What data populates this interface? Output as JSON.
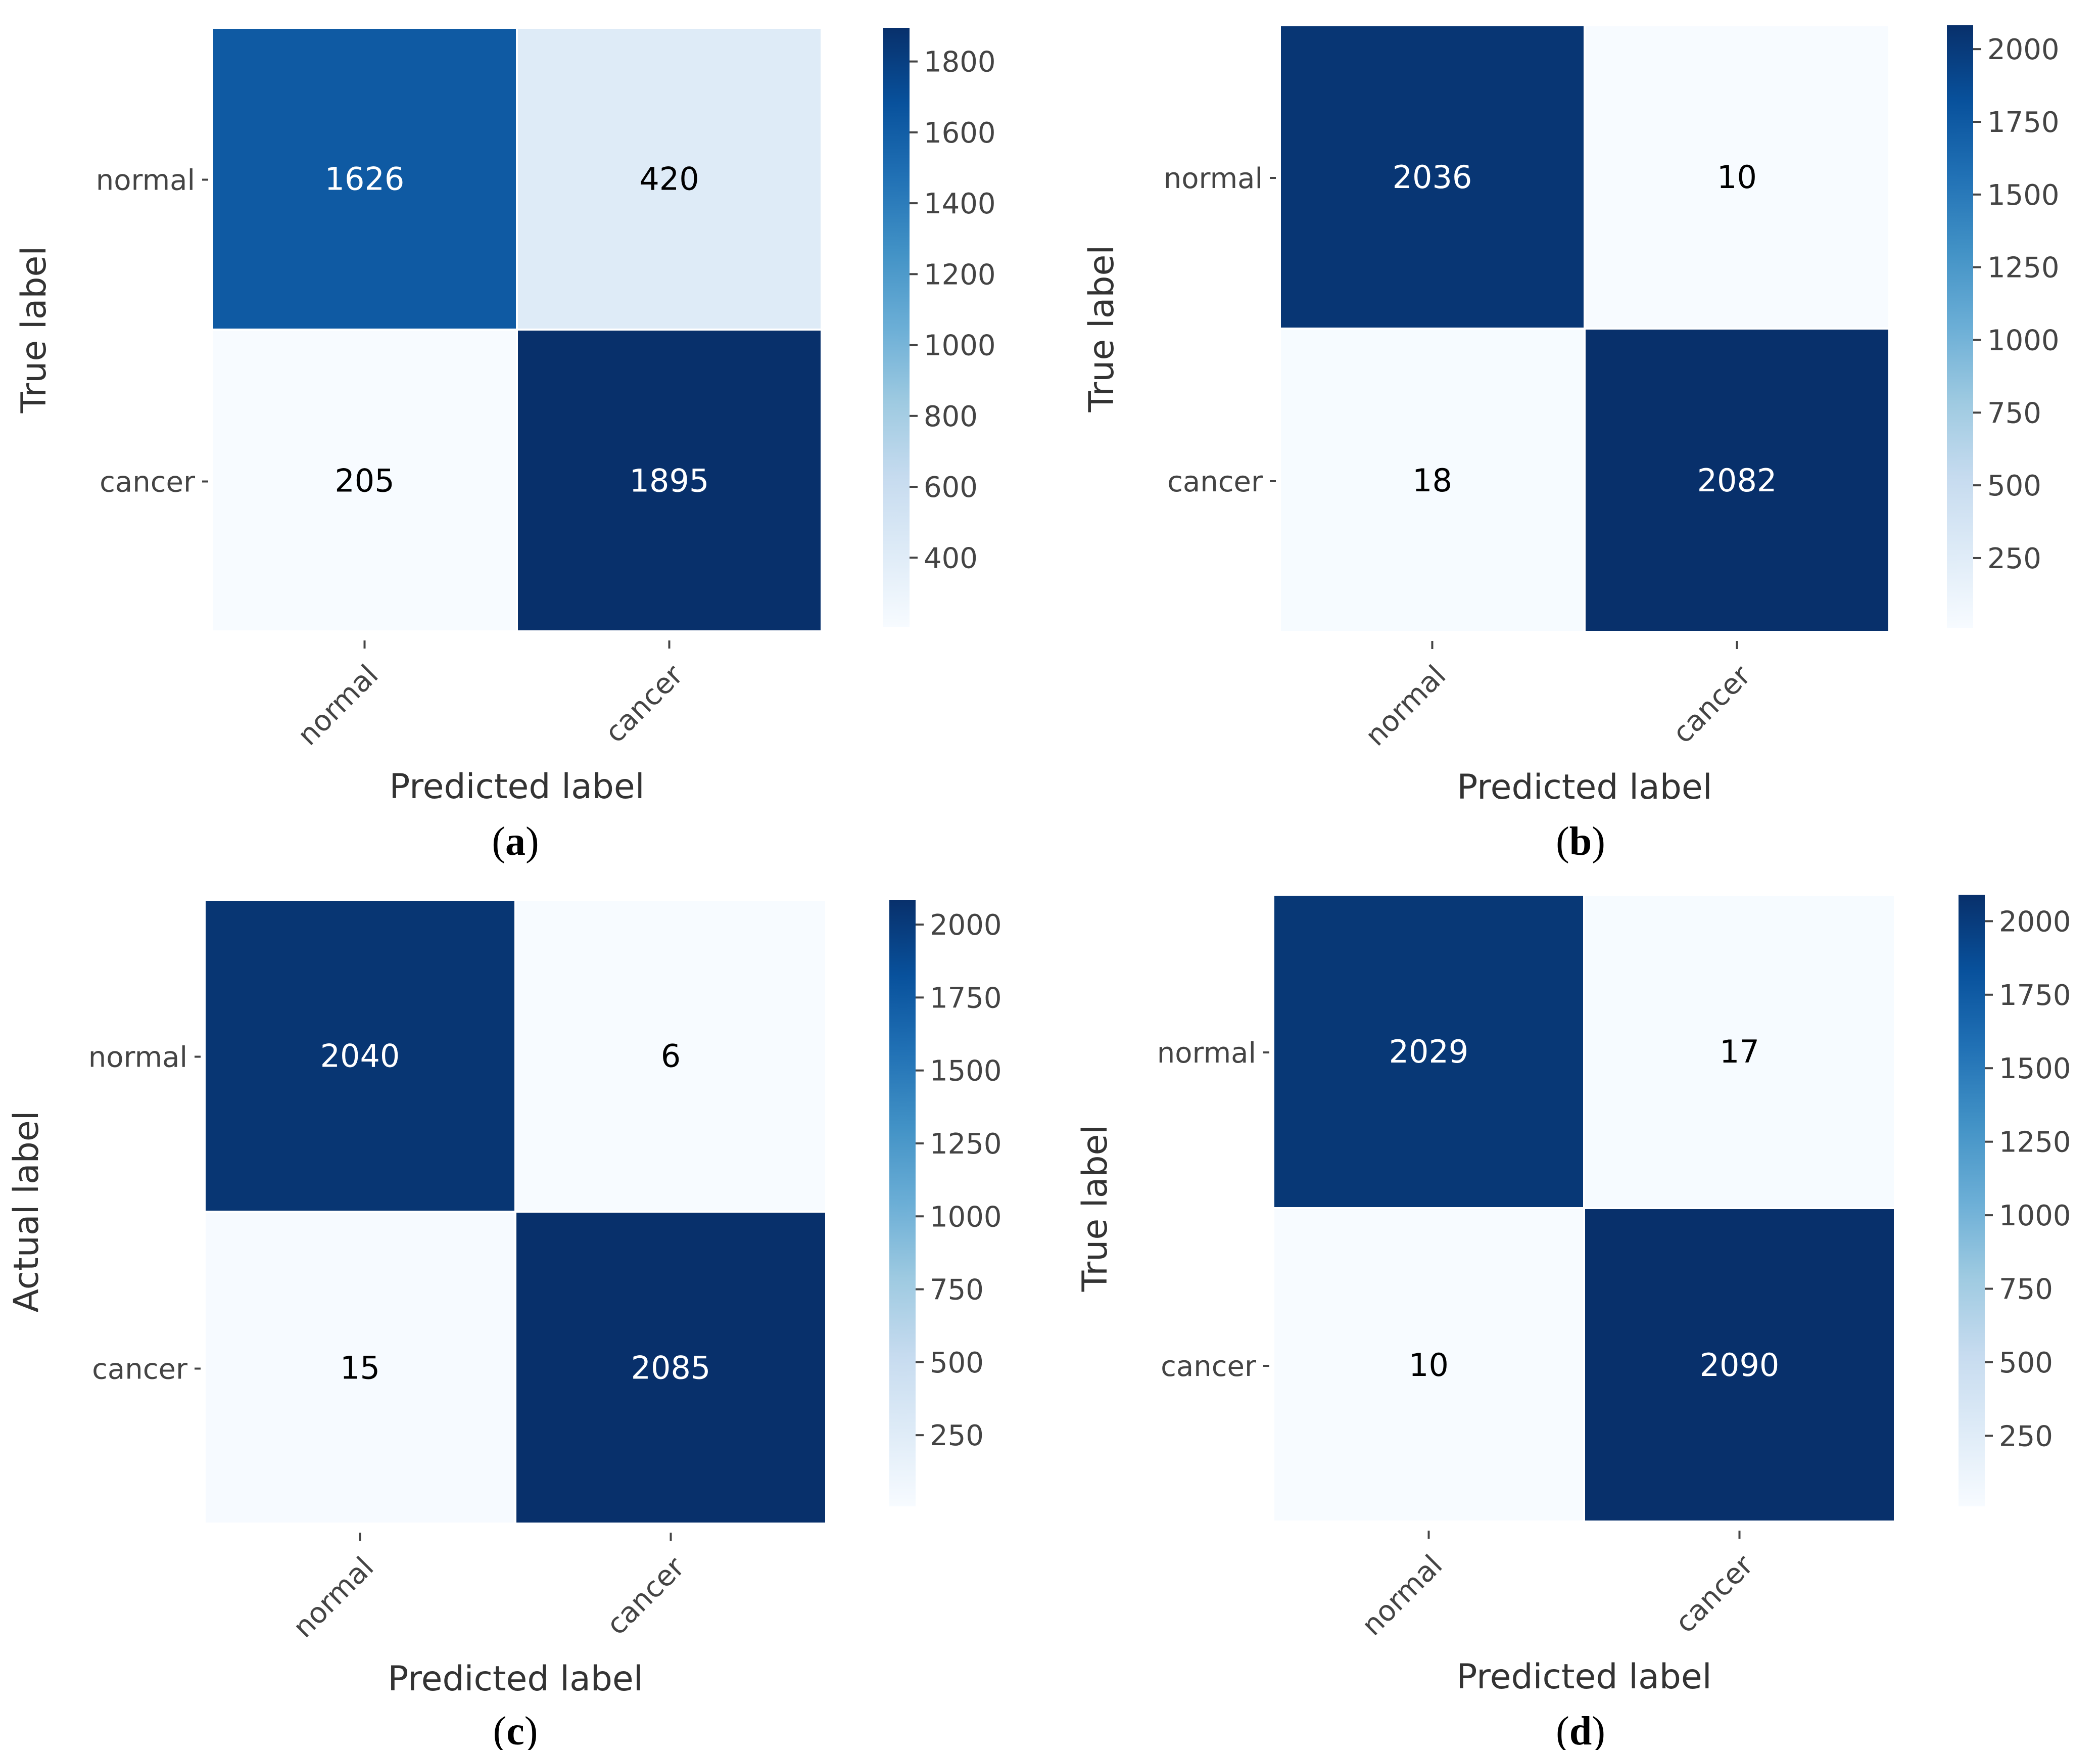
{
  "figure": {
    "panels": [
      {
        "caption_letter": "a"
      },
      {
        "caption_letter": "b"
      },
      {
        "caption_letter": "c"
      },
      {
        "caption_letter": "d"
      }
    ]
  },
  "colors": {
    "cmap": [
      "#f7fbff",
      "#deebf7",
      "#c6dbef",
      "#9ecae1",
      "#6baed6",
      "#4292c6",
      "#2171b5",
      "#08519c",
      "#08306b"
    ],
    "grid_line": "#ffffff",
    "text_dark": "#000000",
    "text_light": "#ffffff",
    "axis_text": "#444444"
  },
  "chart_data": [
    {
      "type": "heatmap",
      "title": "",
      "xlabel": "Predicted label",
      "ylabel": "True label",
      "x_categories": [
        "normal",
        "cancer"
      ],
      "y_categories": [
        "normal",
        "cancer"
      ],
      "values": [
        [
          1626,
          420
        ],
        [
          205,
          1895
        ]
      ],
      "colorbar_ticks": [
        1800,
        1600,
        1400,
        1200,
        1000,
        800,
        600,
        400
      ],
      "vmin": 205,
      "vmax": 1895,
      "legend": "colorbar-right"
    },
    {
      "type": "heatmap",
      "title": "",
      "xlabel": "Predicted label",
      "ylabel": "True label",
      "x_categories": [
        "normal",
        "cancer"
      ],
      "y_categories": [
        "normal",
        "cancer"
      ],
      "values": [
        [
          2036,
          10
        ],
        [
          18,
          2082
        ]
      ],
      "colorbar_ticks": [
        2000,
        1750,
        1500,
        1250,
        1000,
        750,
        500,
        250
      ],
      "vmin": 10,
      "vmax": 2082,
      "legend": "colorbar-right"
    },
    {
      "type": "heatmap",
      "title": "",
      "xlabel": "Predicted label",
      "ylabel": "Actual label",
      "x_categories": [
        "normal",
        "cancer"
      ],
      "y_categories": [
        "normal",
        "cancer"
      ],
      "values": [
        [
          2040,
          6
        ],
        [
          15,
          2085
        ]
      ],
      "colorbar_ticks": [
        2000,
        1750,
        1500,
        1250,
        1000,
        750,
        500,
        250
      ],
      "vmin": 6,
      "vmax": 2085,
      "legend": "colorbar-right"
    },
    {
      "type": "heatmap",
      "title": "",
      "xlabel": "Predicted label",
      "ylabel": "True label",
      "x_categories": [
        "normal",
        "cancer"
      ],
      "y_categories": [
        "normal",
        "cancer"
      ],
      "values": [
        [
          2029,
          17
        ],
        [
          10,
          2090
        ]
      ],
      "colorbar_ticks": [
        2000,
        1750,
        1500,
        1250,
        1000,
        750,
        500,
        250
      ],
      "vmin": 10,
      "vmax": 2090,
      "legend": "colorbar-right"
    }
  ]
}
